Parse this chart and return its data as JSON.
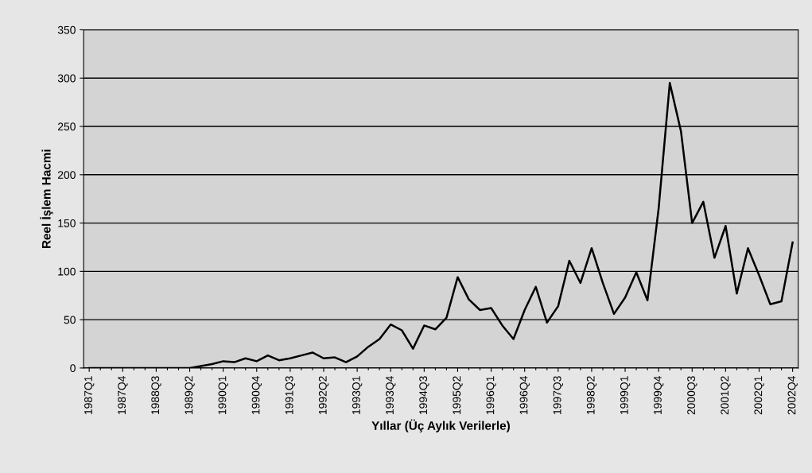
{
  "chart_data": {
    "type": "line",
    "xlabel": "Yıllar (Üç Aylık Verilerle)",
    "ylabel": "Reel İşlem Hacmi",
    "categories": [
      "1987Q1",
      null,
      null,
      "1987Q4",
      null,
      null,
      "1988Q3",
      null,
      null,
      "1989Q2",
      null,
      null,
      "1990Q1",
      null,
      null,
      "1990Q4",
      null,
      null,
      "1991Q3",
      null,
      null,
      "1992Q2",
      null,
      null,
      "1993Q1",
      null,
      null,
      "1993Q4",
      null,
      null,
      "1994Q3",
      null,
      null,
      "1995Q2",
      null,
      null,
      "1996Q1",
      null,
      null,
      "1996Q4",
      null,
      null,
      "1997Q3",
      null,
      null,
      "1998Q2",
      null,
      null,
      "1999Q1",
      null,
      null,
      "1999Q4",
      null,
      null,
      "2000Q3",
      null,
      null,
      "2001Q2",
      null,
      null,
      "2002Q1",
      null,
      null,
      "2002Q4"
    ],
    "series": [
      {
        "color": "#000000",
        "values": [
          0,
          0,
          0,
          0,
          0,
          0,
          0,
          0,
          0,
          0,
          2,
          4,
          7,
          6,
          10,
          7,
          13,
          8,
          10,
          13,
          16,
          10,
          11,
          6,
          12,
          22,
          30,
          45,
          39,
          20,
          44,
          40,
          52,
          94,
          71,
          60,
          62,
          44,
          30,
          60,
          84,
          47,
          64,
          111,
          88,
          124,
          88,
          56,
          73,
          99,
          70,
          165,
          295,
          245,
          150,
          172,
          114,
          147,
          77,
          124,
          96,
          66,
          69,
          130
        ]
      }
    ],
    "ylim": [
      0,
      350
    ],
    "yticks": [
      0,
      50,
      100,
      150,
      200,
      250,
      300,
      350
    ],
    "grid": "y",
    "marker": "none",
    "line_style": "solid"
  }
}
